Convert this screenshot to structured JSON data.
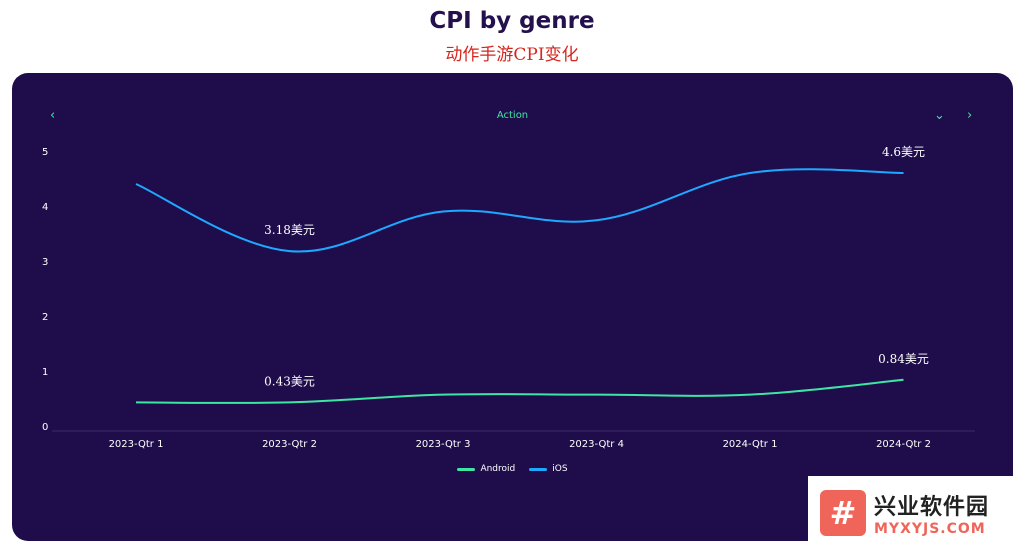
{
  "header": {
    "title": "CPI by genre",
    "subtitle": "动作手游CPI变化"
  },
  "filter": {
    "genre": "Action",
    "prev_icon": "chevron-left-icon",
    "next_icon": "chevron-right-icon",
    "dropdown_icon": "chevron-down-icon"
  },
  "colors": {
    "card_bg": "#1f0d4b",
    "accent": "#3ee6a4",
    "android": "#3ee6a4",
    "ios": "#1ea8ff"
  },
  "chart_data": {
    "type": "line",
    "categories": [
      "2023-Qtr 1",
      "2023-Qtr 2",
      "2023-Qtr 3",
      "2023-Qtr 4",
      "2024-Qtr 1",
      "2024-Qtr 2"
    ],
    "ylim": [
      0,
      5
    ],
    "yticks": [
      "0",
      "1",
      "2",
      "3",
      "4",
      "5"
    ],
    "grid": false,
    "smooth": true,
    "legend_position": "bottom-center",
    "series": [
      {
        "name": "Android",
        "values": [
          0.43,
          0.43,
          0.57,
          0.57,
          0.57,
          0.84
        ],
        "labels": [
          {
            "index": 1,
            "text": "0.43美元"
          },
          {
            "index": 5,
            "text": "0.84美元"
          }
        ]
      },
      {
        "name": "iOS",
        "values": [
          4.4,
          3.18,
          3.9,
          3.74,
          4.6,
          4.6
        ],
        "labels": [
          {
            "index": 1,
            "text": "3.18美元"
          },
          {
            "index": 5,
            "text": "4.6美元"
          }
        ]
      }
    ]
  },
  "watermark": {
    "logo_glyph": "#",
    "name": "兴业软件园",
    "url": "MYXYJS.COM"
  }
}
